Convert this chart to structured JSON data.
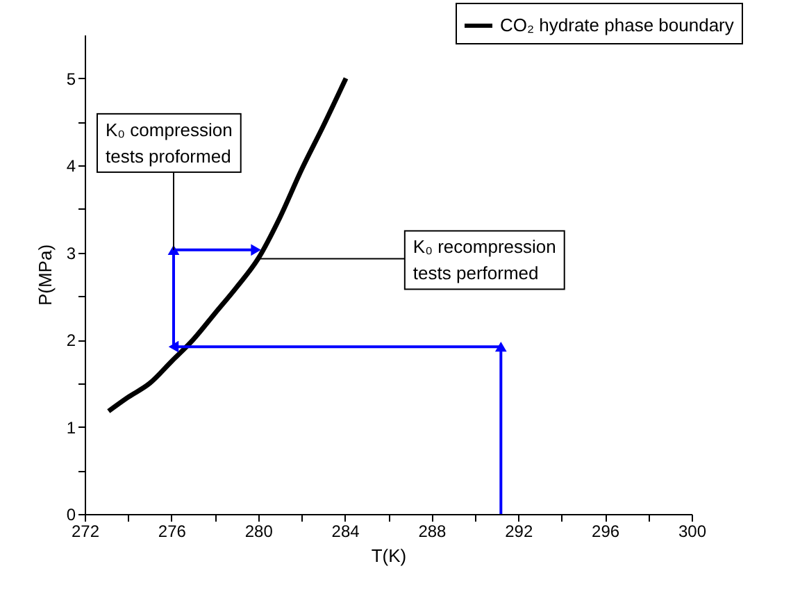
{
  "chart_data": {
    "type": "line",
    "xlabel": "T(K)",
    "ylabel": "P(MPa)",
    "xlim": [
      272,
      300
    ],
    "ylim": [
      0,
      5.5
    ],
    "xticks": [
      272,
      {
        "value": 274,
        "label": null
      },
      276,
      {
        "value": 278,
        "label": null
      },
      280,
      {
        "value": 282,
        "label": null
      },
      284,
      {
        "value": 286,
        "label": null
      },
      288,
      {
        "value": 290,
        "label": null
      },
      292,
      {
        "value": 294,
        "label": null
      },
      296,
      {
        "value": 298,
        "label": null
      },
      300
    ],
    "yticks": [
      0,
      {
        "value": 0.5,
        "label": null
      },
      1,
      {
        "value": 1.5,
        "label": null
      },
      2,
      {
        "value": 2.5,
        "label": null
      },
      3,
      {
        "value": 3.5,
        "label": null
      },
      4,
      {
        "value": 4.5,
        "label": null
      },
      5
    ],
    "grid": false,
    "legend": "top right",
    "series": [
      {
        "name": "CO₂ hydrate phase boundary",
        "color": "#000000",
        "x": [
          273.1,
          274,
          275,
          276,
          277,
          278,
          279,
          280,
          281,
          282,
          283,
          284.05
        ],
        "values": [
          1.18,
          1.34,
          1.5,
          1.75,
          2.0,
          2.3,
          2.6,
          2.93,
          3.4,
          3.95,
          4.45,
          5.0
        ]
      },
      {
        "color": "#0000ff",
        "marker": "triangle",
        "x": [
          291.2,
          291.2,
          276.1,
          276.1,
          279.9
        ],
        "values": [
          0,
          1.92,
          1.92,
          3.03,
          3.03
        ]
      }
    ],
    "annotations": [
      {
        "text": "K₀ compression tests proformed",
        "x": 276.1,
        "y": 3.03
      },
      {
        "text": "K₀ recompression tests performed",
        "x": 280.1,
        "y": 2.93
      }
    ]
  }
}
